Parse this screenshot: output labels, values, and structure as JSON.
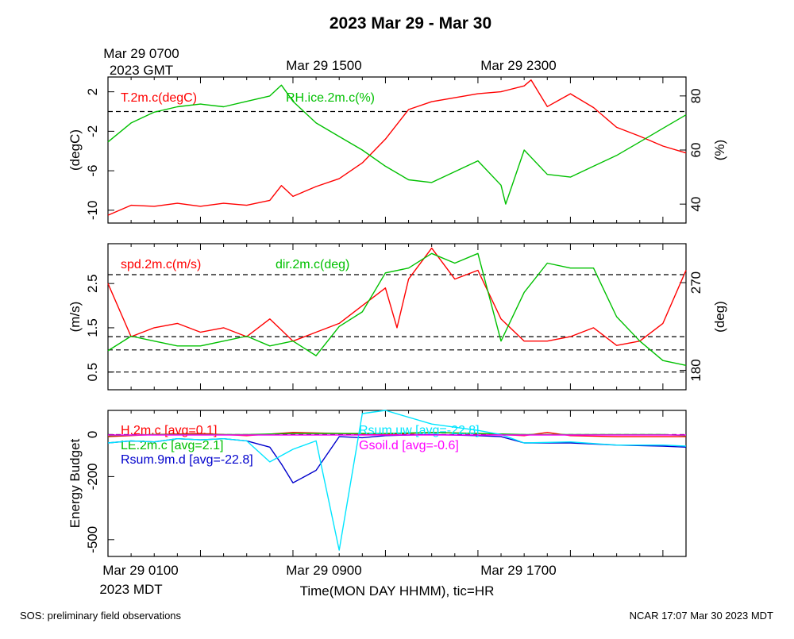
{
  "title": "2023 Mar 29 - Mar 30",
  "top_time_labels": [
    {
      "line1": "Mar 29 0700",
      "line2": "2023 GMT"
    },
    {
      "line1": "Mar 29 1500",
      "line2": ""
    },
    {
      "line1": "Mar 29 2300",
      "line2": ""
    }
  ],
  "bottom_time_labels": [
    {
      "line1": "Mar 29 0100",
      "line2": "2023 MDT"
    },
    {
      "line1": "Mar 29 0900",
      "line2": ""
    },
    {
      "line1": "Mar 29 1700",
      "line2": ""
    }
  ],
  "xlabel": "Time(MON DAY HHMM), tic=HR",
  "footer_left": "SOS: preliminary field observations",
  "footer_right": "NCAR 17:07 Mar 30 2023 MDT",
  "colors": {
    "red": "#ff0000",
    "green": "#00c000",
    "blue": "#0000cc",
    "cyan": "#00e5ff",
    "magenta": "#ff00ff"
  },
  "chart_data": [
    {
      "type": "line",
      "x_unit": "hours since Mar 29 0000 MDT",
      "xlim": [
        0,
        25
      ],
      "left_axis": {
        "label": "(degC)",
        "ticks": [
          2,
          -2,
          -6,
          -10
        ],
        "tick_labels": [
          "2",
          "-2",
          "-6",
          "-10"
        ],
        "range": [
          -11.3,
          3.5
        ]
      },
      "right_axis": {
        "label": "(%)",
        "ticks": [
          80,
          60,
          40
        ],
        "tick_labels": [
          "80",
          "60",
          "40"
        ],
        "range": [
          33,
          87
        ]
      },
      "reference_lines": [
        {
          "axis": "left",
          "value": 0
        }
      ],
      "series": [
        {
          "name": "T.2m.c(degC)",
          "axis": "left",
          "color": "red",
          "x": [
            0,
            1,
            2,
            3,
            4,
            5,
            6,
            7,
            7.5,
            8,
            9,
            10,
            11,
            12,
            13,
            14,
            15,
            16,
            17,
            18,
            18.3,
            19,
            20,
            21,
            22,
            23,
            24,
            25
          ],
          "values": [
            -10.5,
            -9.5,
            -9.6,
            -9.3,
            -9.6,
            -9.3,
            -9.5,
            -9.0,
            -7.5,
            -8.6,
            -7.6,
            -6.8,
            -5.2,
            -2.8,
            0.2,
            1.0,
            1.4,
            1.8,
            2.0,
            2.6,
            3.2,
            0.5,
            1.8,
            0.4,
            -1.6,
            -2.5,
            -3.5,
            -4.2
          ]
        },
        {
          "name": "RH.ice.2m.c(%)",
          "axis": "right",
          "color": "green",
          "x": [
            0,
            1,
            2,
            3,
            4,
            5,
            6,
            7,
            7.5,
            8,
            9,
            10,
            11,
            12,
            13,
            14,
            15,
            16,
            17,
            17.2,
            18,
            19,
            20,
            21,
            22,
            23,
            24,
            25
          ],
          "values": [
            63,
            70,
            74,
            76,
            77,
            76,
            78,
            80,
            84,
            78,
            70,
            65,
            60,
            54,
            49,
            48,
            52,
            56,
            47,
            40,
            60,
            51,
            50,
            54,
            58,
            63,
            68,
            73
          ]
        }
      ]
    },
    {
      "type": "line",
      "xlim": [
        0,
        25
      ],
      "left_axis": {
        "label": "(m/s)",
        "ticks": [
          2.5,
          1.5,
          0.5
        ],
        "tick_labels": [
          "2.5",
          "1.5",
          "0.5"
        ],
        "range": [
          0.1,
          3.4
        ]
      },
      "right_axis": {
        "label": "(deg)",
        "ticks": [
          270,
          180
        ],
        "tick_labels": [
          "270",
          "180"
        ],
        "range": [
          160,
          310
        ]
      },
      "reference_lines": [
        {
          "axis": "left",
          "value": 2.7
        },
        {
          "axis": "left",
          "value": 1.0
        },
        {
          "axis": "left",
          "value": 1.3
        },
        {
          "axis": "left",
          "value": 0.5
        }
      ],
      "series": [
        {
          "name": "spd.2m.c(m/s)",
          "axis": "left",
          "color": "red",
          "x": [
            0,
            1,
            2,
            3,
            4,
            5,
            6,
            7,
            8,
            9,
            10,
            11,
            12,
            12.5,
            13,
            14,
            15,
            16,
            17,
            18,
            19,
            20,
            21,
            22,
            23,
            24,
            25
          ],
          "values": [
            2.5,
            1.3,
            1.5,
            1.6,
            1.4,
            1.5,
            1.3,
            1.7,
            1.2,
            1.4,
            1.6,
            2.0,
            2.4,
            1.5,
            2.6,
            3.3,
            2.6,
            2.8,
            1.7,
            1.2,
            1.2,
            1.3,
            1.5,
            1.1,
            1.2,
            1.6,
            2.8
          ]
        },
        {
          "name": "dir.2m.c(deg)",
          "axis": "right",
          "color": "green",
          "x": [
            0,
            1,
            2,
            3,
            4,
            5,
            6,
            7,
            8,
            9,
            10,
            11,
            12,
            13,
            14,
            15,
            16,
            17,
            18,
            19,
            20,
            21,
            22,
            23,
            24,
            25
          ],
          "values": [
            200,
            215,
            210,
            205,
            205,
            210,
            215,
            205,
            210,
            195,
            225,
            240,
            280,
            285,
            300,
            290,
            300,
            210,
            260,
            290,
            285,
            285,
            235,
            210,
            190,
            185
          ]
        }
      ]
    },
    {
      "type": "line",
      "xlim": [
        0,
        25
      ],
      "left_axis": {
        "label": "Energy Budget",
        "ticks": [
          0,
          -200,
          -500
        ],
        "tick_labels": [
          "0",
          "-200",
          "-500"
        ],
        "range": [
          -580,
          115
        ]
      },
      "reference_lines": [
        {
          "axis": "left",
          "value": 0
        }
      ],
      "series": [
        {
          "name": "H.2m.c [avg=0.1]",
          "color": "red",
          "x": [
            0,
            2,
            4,
            6,
            8,
            10,
            12,
            14,
            16,
            18,
            19,
            20,
            22,
            24,
            25
          ],
          "values": [
            -10,
            0,
            5,
            -5,
            10,
            5,
            0,
            10,
            5,
            -5,
            10,
            -5,
            -10,
            -10,
            -10
          ]
        },
        {
          "name": "LE.2m.c [avg=2.1]",
          "color": "green",
          "x": [
            0,
            2,
            4,
            6,
            8,
            10,
            12,
            14,
            16,
            18,
            20,
            22,
            24,
            25
          ],
          "values": [
            -5,
            0,
            0,
            0,
            5,
            5,
            5,
            10,
            5,
            0,
            0,
            0,
            0,
            -5
          ]
        },
        {
          "name": "Rsum.9m.d [avg=-22.8]",
          "color": "blue",
          "x": [
            0,
            1,
            2,
            3,
            4,
            5,
            6,
            7,
            7.5,
            8,
            9,
            10,
            11,
            12,
            14,
            16,
            17,
            18,
            20,
            22,
            24,
            25
          ],
          "values": [
            -40,
            -30,
            -35,
            -20,
            -25,
            -20,
            -30,
            -60,
            -140,
            -230,
            -170,
            -10,
            -15,
            -5,
            0,
            -5,
            -10,
            -40,
            -40,
            -50,
            -55,
            -60
          ]
        },
        {
          "name": "Rsum.uw [avg=-22.8]",
          "color": "cyan",
          "x": [
            0,
            1,
            2,
            3,
            4,
            5,
            6,
            7,
            8,
            9,
            10,
            11,
            12,
            14,
            16,
            17,
            18,
            20,
            22,
            24,
            25
          ],
          "values": [
            -40,
            -30,
            -35,
            -20,
            -25,
            -20,
            -30,
            -130,
            -70,
            -30,
            -550,
            100,
            115,
            50,
            20,
            0,
            -40,
            -35,
            -50,
            -50,
            -55
          ]
        },
        {
          "name": "Gsoil.d [avg=-0.6]",
          "color": "magenta",
          "x": [
            0,
            25
          ],
          "values": [
            -2,
            -2
          ]
        }
      ]
    }
  ]
}
